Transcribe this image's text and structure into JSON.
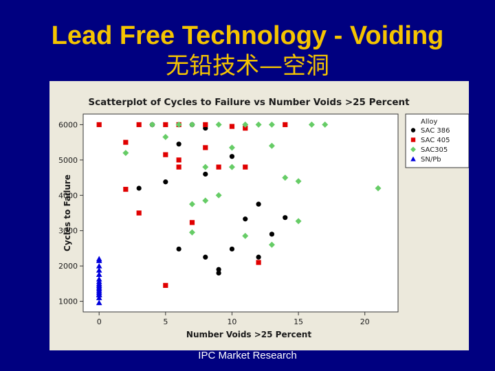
{
  "slide": {
    "title": "Lead Free Technology - Voiding",
    "subtitle": "无铅技术—空洞",
    "footer": "IPC Market Research"
  },
  "colors": {
    "background": "#000080",
    "title": "#f5c400",
    "panel": "#ece9dc",
    "plot_area": "#ffffff"
  },
  "chart_data": {
    "type": "scatter",
    "title": "Scatterplot of Cycles to Failure vs Number Voids >25 Percent",
    "xlabel": "Number Voids >25 Percent",
    "ylabel": "Cycles to Failure",
    "xlim": [
      -1.2,
      22.5
    ],
    "ylim": [
      700,
      6300
    ],
    "x_ticks": [
      0,
      5,
      10,
      15,
      20
    ],
    "y_ticks": [
      1000,
      2000,
      3000,
      4000,
      5000,
      6000
    ],
    "grid": false,
    "legend": {
      "title": "Alloy",
      "placement": "top-right"
    },
    "series": [
      {
        "name": "SAC 386",
        "marker": "circle",
        "color": "#000000",
        "points": [
          [
            4,
            6000
          ],
          [
            7,
            6000
          ],
          [
            8,
            5900
          ],
          [
            6,
            5450
          ],
          [
            10,
            5100
          ],
          [
            8,
            4600
          ],
          [
            5,
            4380
          ],
          [
            3,
            4200
          ],
          [
            12,
            3750
          ],
          [
            11,
            3330
          ],
          [
            14,
            3370
          ],
          [
            13,
            2900
          ],
          [
            6,
            2480
          ],
          [
            10,
            2480
          ],
          [
            8,
            2250
          ],
          [
            12,
            2250
          ],
          [
            9,
            1900
          ],
          [
            9,
            1800
          ]
        ]
      },
      {
        "name": "SAC 405",
        "marker": "square",
        "color": "#e00000",
        "points": [
          [
            0,
            6000
          ],
          [
            3,
            6000
          ],
          [
            5,
            6000
          ],
          [
            6,
            6000
          ],
          [
            8,
            6000
          ],
          [
            10,
            5950
          ],
          [
            11,
            5900
          ],
          [
            14,
            6000
          ],
          [
            2,
            5500
          ],
          [
            8,
            5350
          ],
          [
            5,
            5150
          ],
          [
            6,
            5000
          ],
          [
            6,
            4800
          ],
          [
            9,
            4800
          ],
          [
            11,
            4800
          ],
          [
            2,
            4170
          ],
          [
            3,
            3500
          ],
          [
            7,
            3230
          ],
          [
            12,
            2100
          ],
          [
            5,
            1450
          ]
        ]
      },
      {
        "name": "SAC305",
        "marker": "diamond",
        "color": "#66cc66",
        "points": [
          [
            4,
            6000
          ],
          [
            6,
            6000
          ],
          [
            7,
            6000
          ],
          [
            9,
            6000
          ],
          [
            11,
            6000
          ],
          [
            12,
            6000
          ],
          [
            13,
            6000
          ],
          [
            16,
            6000
          ],
          [
            17,
            6000
          ],
          [
            5,
            5650
          ],
          [
            10,
            5350
          ],
          [
            2,
            5200
          ],
          [
            13,
            5400
          ],
          [
            8,
            4800
          ],
          [
            10,
            4800
          ],
          [
            14,
            4500
          ],
          [
            15,
            4400
          ],
          [
            21,
            4200
          ],
          [
            9,
            4000
          ],
          [
            8,
            3850
          ],
          [
            7,
            3750
          ],
          [
            15,
            3270
          ],
          [
            7,
            2950
          ],
          [
            11,
            2850
          ],
          [
            13,
            2600
          ]
        ]
      },
      {
        "name": "SN/Pb",
        "marker": "triangle",
        "color": "#0000dd",
        "points": [
          [
            0,
            2200
          ],
          [
            0,
            2150
          ],
          [
            0,
            2000
          ],
          [
            0,
            1880
          ],
          [
            0,
            1760
          ],
          [
            0,
            1630
          ],
          [
            0,
            1560
          ],
          [
            0,
            1500
          ],
          [
            0,
            1450
          ],
          [
            0,
            1400
          ],
          [
            0,
            1350
          ],
          [
            0,
            1300
          ],
          [
            0,
            1250
          ],
          [
            0,
            1200
          ],
          [
            0,
            1180
          ],
          [
            0,
            1100
          ],
          [
            0,
            960
          ]
        ]
      }
    ]
  }
}
